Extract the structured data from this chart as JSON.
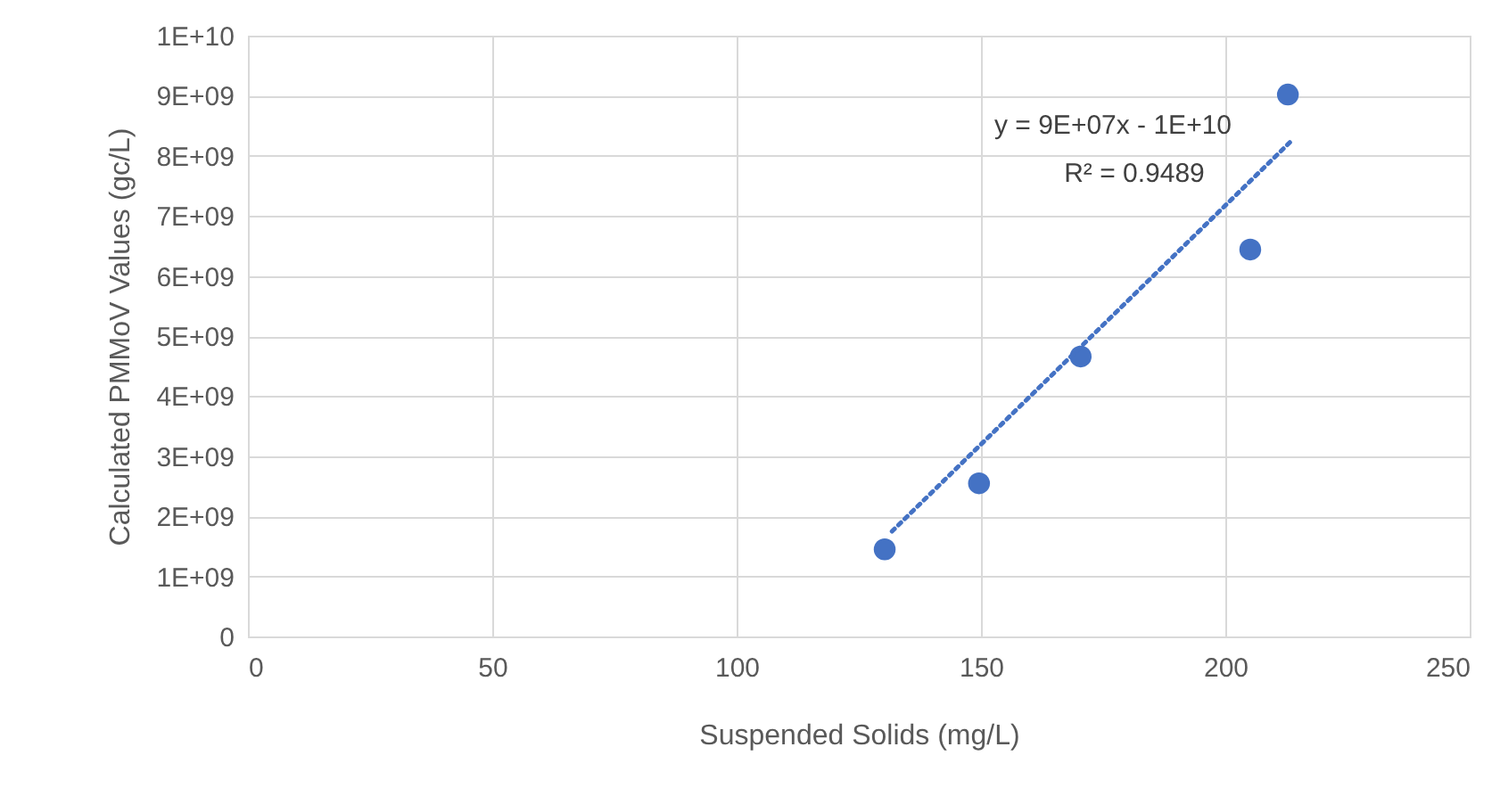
{
  "chart_data": {
    "type": "scatter",
    "xlabel": "Suspended Solids (mg/L)",
    "ylabel": "Calculated PMMoV Values (gc/L)",
    "x": [
      130.3,
      149.6,
      170.4,
      205.1,
      212.8
    ],
    "series": [
      {
        "color": "#4472c4",
        "marker": "circle",
        "values": [
          1450000000.0,
          2550000000.0,
          4660000000.0,
          6440000000.0,
          9020000000.0
        ]
      },
      {
        "type": "line",
        "color": "#4472c4",
        "line_style": "dotted",
        "marker": "none",
        "x": [
          131.8,
          213.9
        ],
        "values": [
          1750000000.0,
          8280000000.0
        ]
      }
    ],
    "xlim": [
      0,
      250
    ],
    "xticks": [
      0,
      50,
      100,
      150,
      200,
      250
    ],
    "ylim": [
      0,
      10000000000.0
    ],
    "yticks": [
      {
        "value": 0,
        "label": "0"
      },
      {
        "value": 1000000000.0,
        "label": "1E+09"
      },
      {
        "value": 2000000000.0,
        "label": "2E+09"
      },
      {
        "value": 3000000000.0,
        "label": "3E+09"
      },
      {
        "value": 4000000000.0,
        "label": "4E+09"
      },
      {
        "value": 5000000000.0,
        "label": "5E+09"
      },
      {
        "value": 6000000000.0,
        "label": "6E+09"
      },
      {
        "value": 7000000000.0,
        "label": "7E+09"
      },
      {
        "value": 8000000000.0,
        "label": "8E+09"
      },
      {
        "value": 9000000000.0,
        "label": "9E+09"
      },
      {
        "value": 10000000000.0,
        "label": "1E+10"
      }
    ],
    "annotations": [
      "y = 9E+07x - 1E+10",
      "R² = 0.9489"
    ],
    "grid": true
  }
}
